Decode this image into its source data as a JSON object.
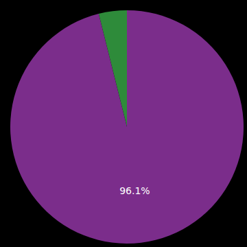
{
  "chart_data": {
    "type": "pie",
    "values": [
      3.9,
      96.1
    ],
    "colors": [
      "#2e8b3a",
      "#7b2d8b"
    ],
    "value_labels": [
      null,
      "96.1%"
    ]
  }
}
